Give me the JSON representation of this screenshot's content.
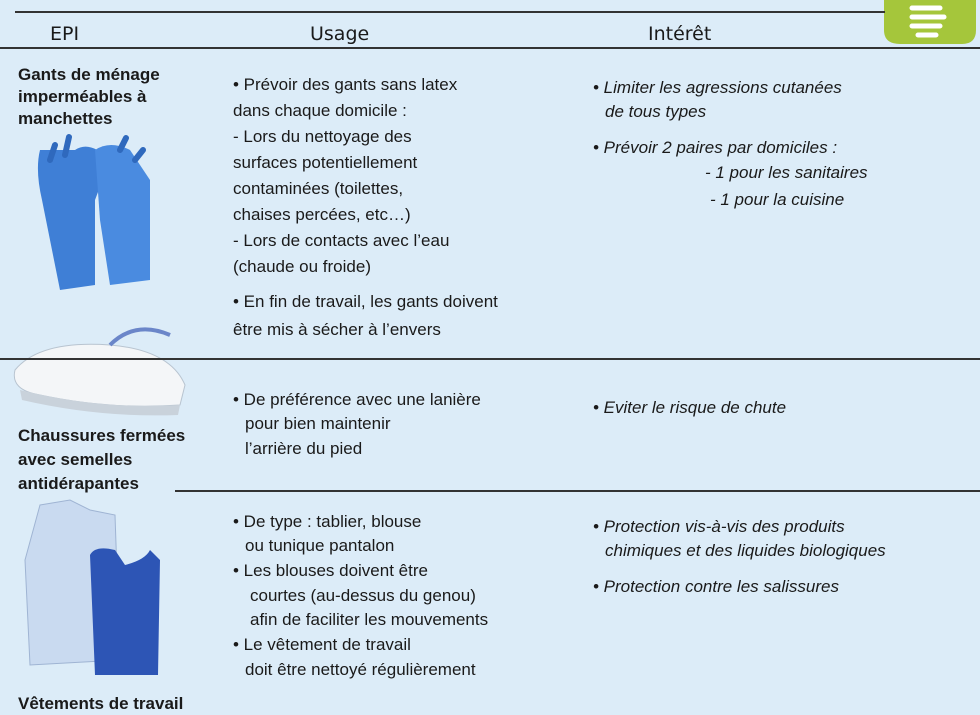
{
  "header": {
    "columns": [
      "EPI",
      "Usage",
      "Intérêt"
    ]
  },
  "rows": [
    {
      "epi": [
        "Gants de ménage",
        "imperméables à",
        "manchettes"
      ],
      "usage": [
        "• Prévoir des gants sans latex",
        "dans chaque domicile :",
        "- Lors du nettoyage des",
        "surfaces potentiellement",
        "contaminées (toilettes,",
        "chaises percées, etc…)",
        "- Lors de contacts avec l’eau",
        "(chaude ou froide)",
        "• En fin de travail, les gants doivent",
        "être mis à sécher à l’envers"
      ],
      "interet": [
        "• Limiter les agressions cutanées",
        "de tous types",
        "• Prévoir 2 paires par domiciles :",
        "- 1 pour les sanitaires",
        "- 1 pour la cuisine"
      ]
    },
    {
      "epi": [
        "Chaussures fermées",
        "avec semelles",
        "antidérapantes"
      ],
      "usage": [
        "• De préférence avec une lanière",
        "pour bien maintenir",
        "l’arrière du pied"
      ],
      "interet": [
        "• Eviter le risque de chute"
      ]
    },
    {
      "epi": [
        "Vêtements de travail"
      ],
      "usage": [
        "• De type : tablier, blouse",
        "ou tunique pantalon",
        "•  Les blouses doivent être",
        "courtes (au-dessus du genou)",
        "afin de faciliter les mouvements",
        "•  Le vêtement de travail",
        "doit être nettoyé régulièrement"
      ],
      "interet": [
        "• Protection vis-à-vis des produits",
        "chimiques et des liquides biologiques",
        "• Protection contre les salissures"
      ]
    }
  ]
}
